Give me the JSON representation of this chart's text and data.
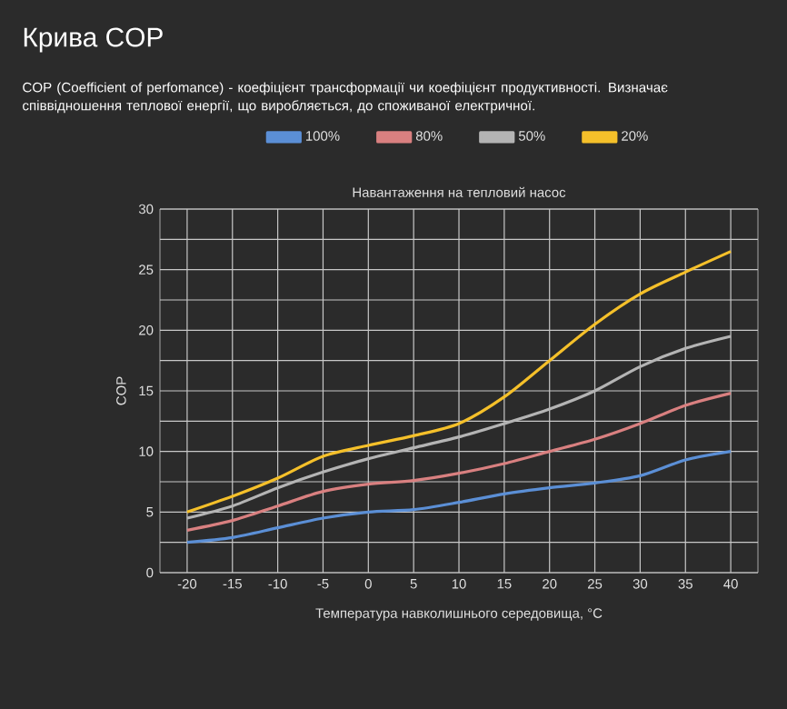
{
  "chart_data": {
    "type": "line",
    "title": "Крива COP",
    "subtitle": "COP (Coefficient of perfomance) - коефіцієнт трансформації чи коефіцієнт продуктивності. Визначає співвідношення теплової енергії, що виробляється, до споживаної електричної.",
    "legend_title": "Навантаження на тепловий насос",
    "xlabel": "Температура навколишнього середовища, °C",
    "ylabel": "COP",
    "x": [
      -20,
      -15,
      -10,
      -5,
      0,
      5,
      10,
      15,
      20,
      25,
      30,
      35,
      40
    ],
    "series": [
      {
        "name": "100%",
        "color": "#5b8fd6",
        "values": [
          2.5,
          2.9,
          3.7,
          4.5,
          5,
          5.2,
          5.8,
          6.5,
          7,
          7.4,
          8,
          9.3,
          10
        ]
      },
      {
        "name": "80%",
        "color": "#d98080",
        "values": [
          3.5,
          4.3,
          5.5,
          6.7,
          7.3,
          7.6,
          8.2,
          9,
          10,
          11,
          12.3,
          13.8,
          14.8
        ]
      },
      {
        "name": "50%",
        "color": "#b4b4b4",
        "values": [
          4.5,
          5.5,
          7,
          8.3,
          9.4,
          10.3,
          11.2,
          12.3,
          13.5,
          15,
          17,
          18.5,
          19.5
        ]
      },
      {
        "name": "20%",
        "color": "#f5c02a",
        "values": [
          5,
          6.3,
          7.8,
          9.6,
          10.5,
          11.3,
          12.3,
          14.5,
          17.5,
          20.5,
          23,
          24.8,
          26.5
        ]
      }
    ],
    "xlim": [
      -23,
      43
    ],
    "ylim": [
      0,
      30
    ],
    "xticks": [
      -20,
      -15,
      -10,
      -5,
      0,
      5,
      10,
      15,
      20,
      25,
      30,
      35,
      40
    ],
    "yticks": [
      0,
      {
        "value": 2.5,
        "label": null
      },
      5,
      {
        "value": 7.5,
        "label": null
      },
      10,
      {
        "value": 12.5,
        "label": null
      },
      15,
      {
        "value": 17.5,
        "label": null
      },
      20,
      {
        "value": 22.5,
        "label": null
      },
      25,
      {
        "value": 27.5,
        "label": null
      },
      30
    ],
    "grid": true,
    "legend": "top",
    "marker": "none",
    "line_style": "solid"
  }
}
